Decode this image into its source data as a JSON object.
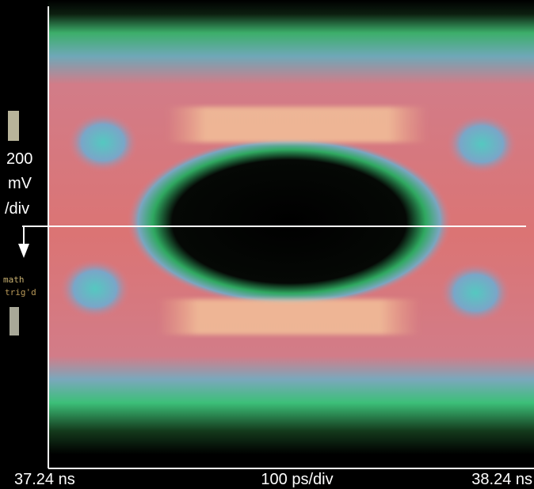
{
  "scale_labels": {
    "volts_value": "200",
    "volts_unit": "mV",
    "volts_per": "/div",
    "status_math": "math",
    "status_trig": "trig'd"
  },
  "time_axis": {
    "start": "37.24 ns",
    "scale": "100 ps/div",
    "end": "38.24 ns"
  }
}
